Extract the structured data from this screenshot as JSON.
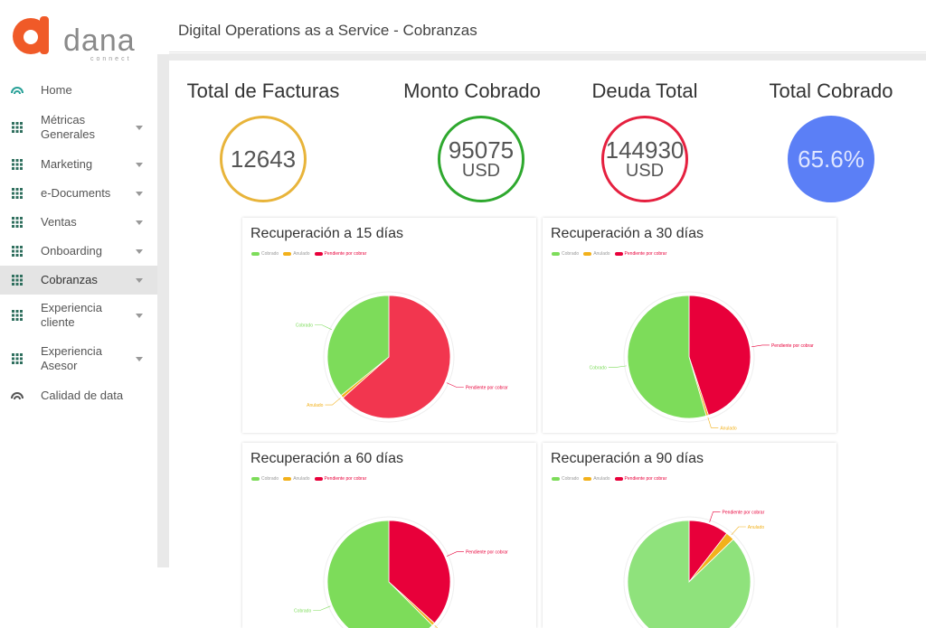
{
  "logo": {
    "wordmark": "dana",
    "tagline": "connect"
  },
  "header": {
    "title": "Digital Operations as a Service - Cobranzas"
  },
  "sidebar": {
    "items": [
      {
        "label": "Home",
        "icon": "home-icon",
        "has_submenu": false
      },
      {
        "label": "Métricas Generales",
        "icon": "grid-icon",
        "has_submenu": true
      },
      {
        "label": "Marketing",
        "icon": "grid-icon",
        "has_submenu": true
      },
      {
        "label": "e-Documents",
        "icon": "grid-icon",
        "has_submenu": true
      },
      {
        "label": "Ventas",
        "icon": "grid-icon",
        "has_submenu": true
      },
      {
        "label": "Onboarding",
        "icon": "grid-icon",
        "has_submenu": true
      },
      {
        "label": "Cobranzas",
        "icon": "grid-icon",
        "has_submenu": true,
        "active": true
      },
      {
        "label": "Experiencia cliente",
        "icon": "grid-icon",
        "has_submenu": true
      },
      {
        "label": "Experiencia Asesor",
        "icon": "grid-icon",
        "has_submenu": true
      },
      {
        "label": "Calidad de data",
        "icon": "gauge-icon",
        "has_submenu": false
      }
    ]
  },
  "kpis": [
    {
      "title": "Total de Facturas",
      "value": "12643",
      "unit": "",
      "ring_color": "#e8b43a"
    },
    {
      "title": "Monto Cobrado",
      "value": "95075",
      "unit": "USD",
      "ring_color": "#2ea82e"
    },
    {
      "title": "Deuda Total",
      "value": "144930",
      "unit": "USD",
      "ring_color": "#e5203f"
    },
    {
      "title": "Total Cobrado",
      "value": "65.6%",
      "unit": "",
      "fill_color": "#5b7ff6"
    }
  ],
  "colors": {
    "cobrado": "#7ddc5a",
    "anulado": "#f2b11b",
    "pendiente": "#e8003a",
    "pendiente_soft": "#f2364f",
    "cobrado_soft": "#8fe27c"
  },
  "chart_data": [
    {
      "type": "pie",
      "title": "Recuperación a 15 días",
      "legend": [
        "Cobrado",
        "Anulado",
        "Pendiente por cobrar"
      ],
      "values": [
        35.8,
        0.8,
        63.4
      ]
    },
    {
      "type": "pie",
      "title": "Recuperación a 30 días",
      "legend": [
        "Cobrado",
        "Anulado",
        "Pendiente por cobrar"
      ],
      "values": [
        54.5,
        0.6,
        44.9
      ]
    },
    {
      "type": "pie",
      "title": "Recuperación a 60 días",
      "legend": [
        "Cobrado",
        "Anulado",
        "Pendiente por cobrar"
      ],
      "values": [
        62.5,
        0.8,
        36.7
      ]
    },
    {
      "type": "pie",
      "title": "Recuperación a 90 días",
      "legend": [
        "Cobrado",
        "Anulado",
        "Pendiente por cobrar"
      ],
      "values": [
        87.2,
        2.3,
        10.5
      ]
    }
  ]
}
